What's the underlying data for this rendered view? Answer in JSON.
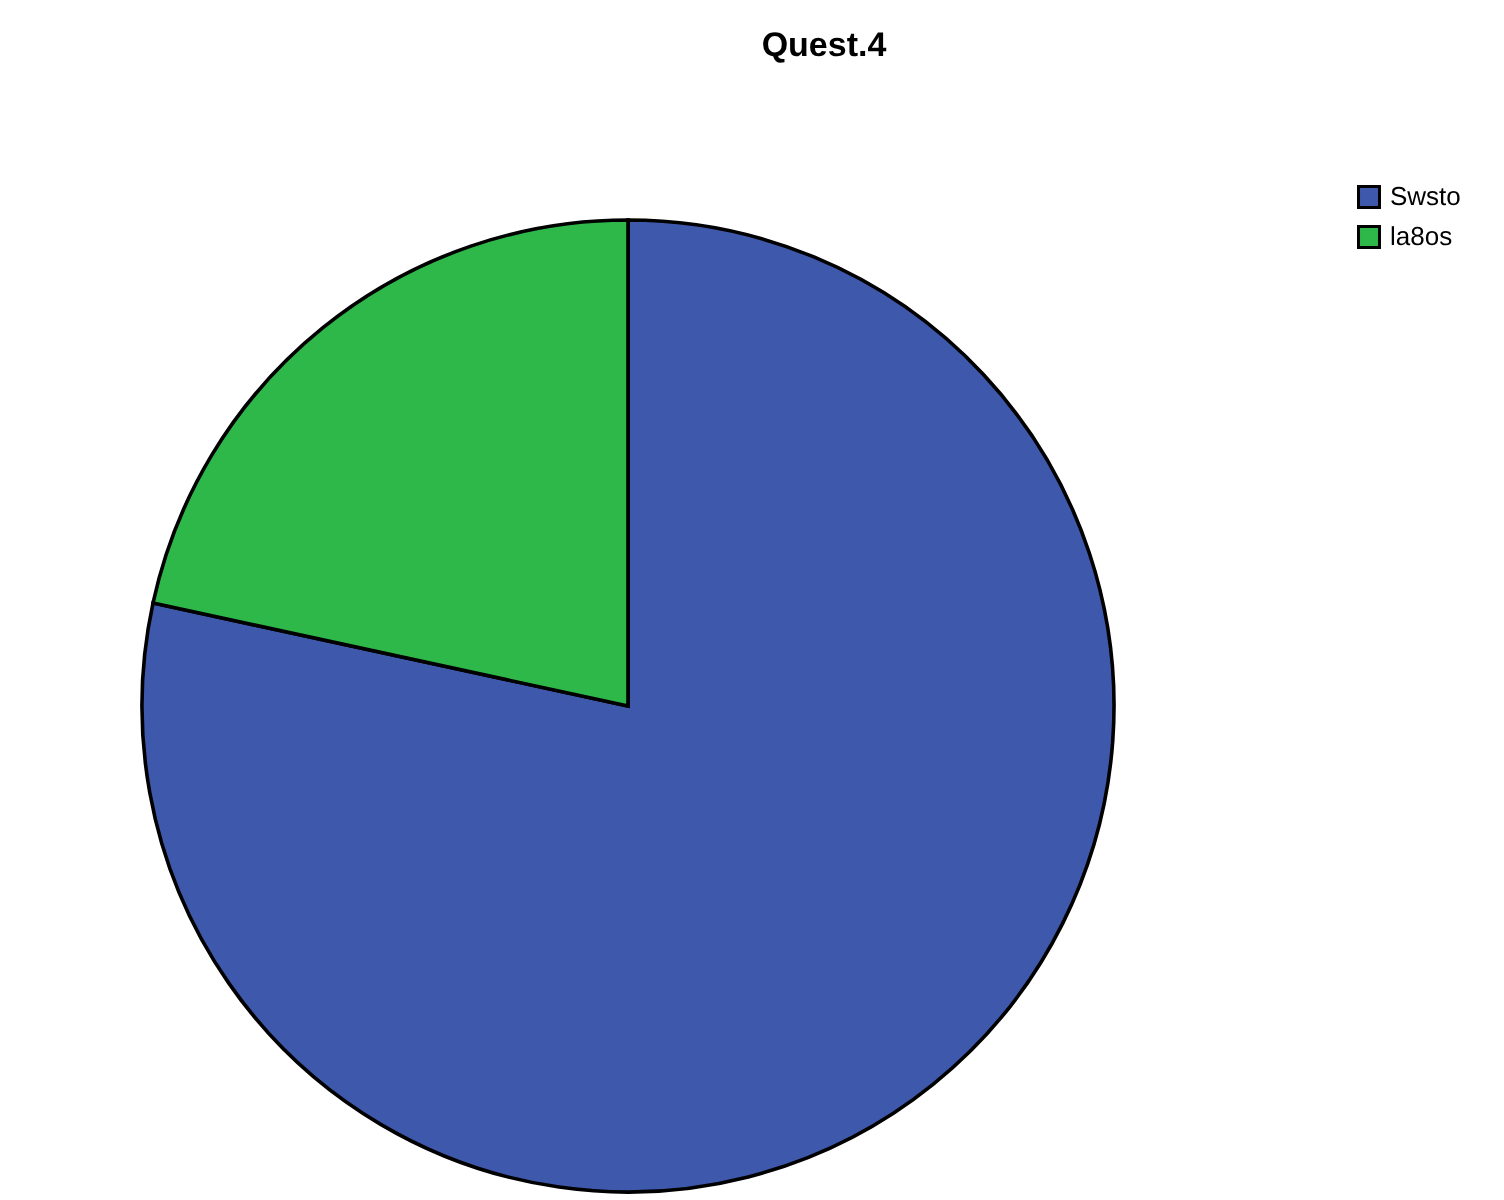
{
  "chart_data": {
    "type": "pie",
    "title": "Quest.4",
    "categories": [
      "Swsto",
      "la8os"
    ],
    "values": [
      78.4,
      21.6
    ],
    "colors": [
      "#3e58ab",
      "#2fb84a"
    ],
    "legend": "top right"
  }
}
